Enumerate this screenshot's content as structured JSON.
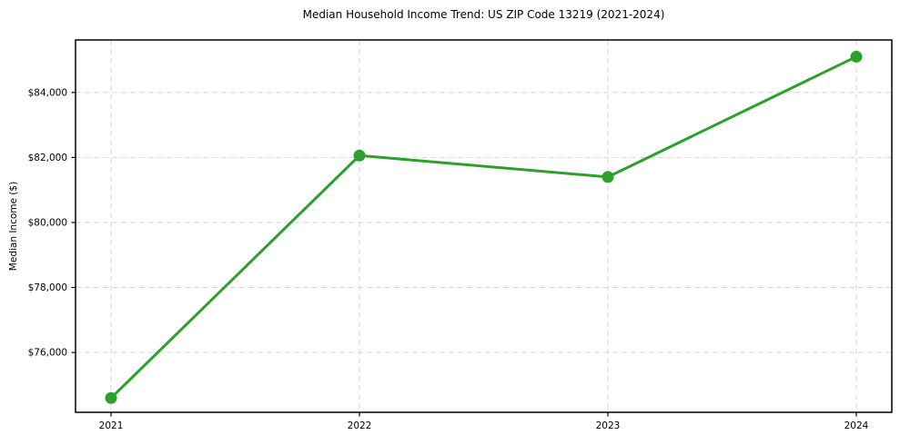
{
  "chart_data": {
    "type": "line",
    "title": "Median Household Income Trend: US ZIP Code 13219 (2021-2024)",
    "xlabel": "",
    "ylabel": "Median Income ($)",
    "x": [
      2021,
      2022,
      2023,
      2024
    ],
    "series": [
      {
        "name": "Median Household Income",
        "values": [
          74600,
          82060,
          81400,
          85100
        ]
      }
    ],
    "xtick_labels": [
      "2021",
      "2022",
      "2023",
      "2024"
    ],
    "yticks": [
      76000,
      78000,
      80000,
      82000,
      84000
    ],
    "ytick_labels": [
      "$76,000",
      "$78,000",
      "$80,000",
      "$82,000",
      "$84,000"
    ],
    "xlim": [
      2020.857,
      2024.143
    ],
    "ylim": [
      74160,
      85615
    ],
    "grid": true,
    "grid_style": "dashed",
    "legend": "none",
    "line_color": "#2ca02c",
    "grid_color": "#cfcfcf",
    "axis_color": "#000000",
    "marker": "circle"
  }
}
